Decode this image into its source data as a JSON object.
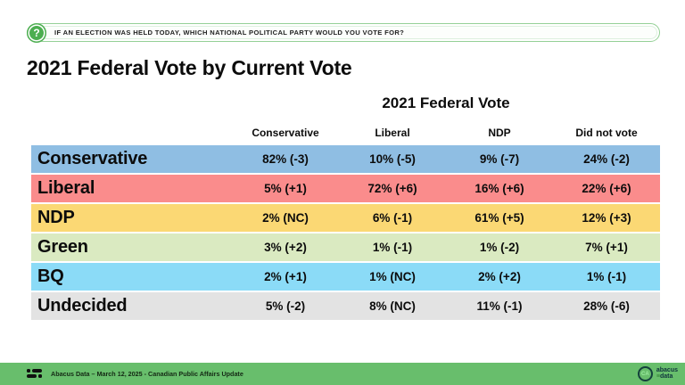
{
  "banner": {
    "question": "IF AN ELECTION WAS HELD TODAY, WHICH NATIONAL POLITICAL PARTY WOULD YOU VOTE FOR?",
    "icon_glyph": "?"
  },
  "title": "2021 Federal Vote by Current Vote",
  "table": {
    "group_header": "2021 Federal Vote",
    "columns": [
      "Conservative",
      "Liberal",
      "NDP",
      "Did not vote"
    ],
    "rows": [
      {
        "label": "Conservative",
        "color": "#8fbee3",
        "values": [
          "82% (-3)",
          "10% (-5)",
          "9% (-7)",
          "24% (-2)"
        ]
      },
      {
        "label": "Liberal",
        "color": "#fa8c8c",
        "values": [
          "5% (+1)",
          "72% (+6)",
          "16% (+6)",
          "22% (+6)"
        ]
      },
      {
        "label": "NDP",
        "color": "#fbd874",
        "values": [
          "2% (NC)",
          "6% (-1)",
          "61% (+5)",
          "12% (+3)"
        ]
      },
      {
        "label": "Green",
        "color": "#daeac1",
        "values": [
          "3% (+2)",
          "1% (-1)",
          "1% (-2)",
          "7% (+1)"
        ]
      },
      {
        "label": "BQ",
        "color": "#8bdbf7",
        "values": [
          "2% (+1)",
          "1% (NC)",
          "2% (+2)",
          "1% (-1)"
        ]
      },
      {
        "label": "Undecided",
        "color": "#e3e3e3",
        "values": [
          "5% (-2)",
          "8% (NC)",
          "11% (-1)",
          "28% (-6)"
        ]
      }
    ]
  },
  "footer": {
    "text": "Abacus Data – March 12, 2025 - Canadian Public Affairs Update",
    "logo_ca": "CA",
    "brand_line1": "abacus",
    "brand_line2": "data"
  },
  "colors": {
    "footer_green": "#68be6c",
    "banner_green": "#4cae50"
  },
  "chart_data": {
    "type": "table",
    "title": "2021 Federal Vote by Current Vote",
    "subtitle_question": "IF AN ELECTION WAS HELD TODAY, WHICH NATIONAL POLITICAL PARTY WOULD YOU VOTE FOR?",
    "column_group_label": "2021 Federal Vote",
    "columns": [
      "Conservative",
      "Liberal",
      "NDP",
      "Did not vote"
    ],
    "row_labels": [
      "Conservative",
      "Liberal",
      "NDP",
      "Green",
      "BQ",
      "Undecided"
    ],
    "cells": [
      [
        "82% (-3)",
        "10% (-5)",
        "9% (-7)",
        "24% (-2)"
      ],
      [
        "5% (+1)",
        "72% (+6)",
        "16% (+6)",
        "22% (+6)"
      ],
      [
        "2% (NC)",
        "6% (-1)",
        "61% (+5)",
        "12% (+3)"
      ],
      [
        "3% (+2)",
        "1% (-1)",
        "1% (-2)",
        "7% (+1)"
      ],
      [
        "2% (+1)",
        "1% (NC)",
        "2% (+2)",
        "1% (-1)"
      ],
      [
        "5% (-2)",
        "8% (NC)",
        "11% (-1)",
        "28% (-6)"
      ]
    ],
    "values_numeric_pct": [
      [
        82,
        10,
        9,
        24
      ],
      [
        5,
        72,
        16,
        22
      ],
      [
        2,
        6,
        61,
        12
      ],
      [
        3,
        1,
        1,
        7
      ],
      [
        2,
        1,
        2,
        1
      ],
      [
        5,
        8,
        11,
        28
      ]
    ],
    "change_vs_previous": [
      [
        -3,
        -5,
        -7,
        -2
      ],
      [
        1,
        6,
        6,
        6
      ],
      [
        0,
        -1,
        5,
        3
      ],
      [
        2,
        -1,
        -2,
        1
      ],
      [
        1,
        0,
        2,
        -1
      ],
      [
        -2,
        0,
        -1,
        -6
      ]
    ],
    "row_colors": [
      "#8fbee3",
      "#fa8c8c",
      "#fbd874",
      "#daeac1",
      "#8bdbf7",
      "#e3e3e3"
    ],
    "footer_note": "Abacus Data – March 12, 2025 - Canadian Public Affairs Update"
  }
}
